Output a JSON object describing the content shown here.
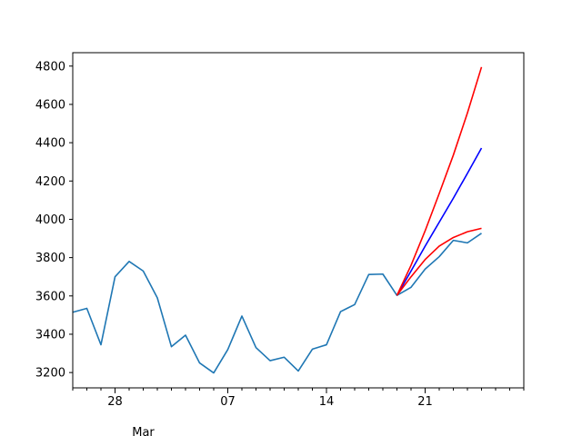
{
  "chart_data": {
    "type": "line",
    "title": "",
    "xlabel": "",
    "ylabel": "",
    "x_start": "2020-02-25",
    "x_end": "2020-03-28",
    "xlim": [
      "2020-02-25",
      "2020-03-28"
    ],
    "ylim": [
      3120,
      4870
    ],
    "y_ticks": [
      3200,
      3400,
      3600,
      3800,
      4000,
      4200,
      4400,
      4600,
      4800
    ],
    "x_ticks": [
      {
        "date": "2020-02-28",
        "label": "28",
        "major": true
      },
      {
        "date": "2020-03-07",
        "label": "07",
        "major": true
      },
      {
        "date": "2020-03-14",
        "label": "14",
        "major": true
      },
      {
        "date": "2020-03-21",
        "label": "21",
        "major": true
      }
    ],
    "x_minor_ticks": [
      "2020-02-25",
      "2020-02-26",
      "2020-02-27",
      "2020-02-29",
      "2020-03-01",
      "2020-03-02",
      "2020-03-03",
      "2020-03-04",
      "2020-03-05",
      "2020-03-06",
      "2020-03-08",
      "2020-03-09",
      "2020-03-10",
      "2020-03-11",
      "2020-03-12",
      "2020-03-13",
      "2020-03-15",
      "2020-03-16",
      "2020-03-17",
      "2020-03-18",
      "2020-03-19",
      "2020-03-20",
      "2020-03-22",
      "2020-03-23",
      "2020-03-24",
      "2020-03-25",
      "2020-03-26",
      "2020-03-27",
      "2020-03-28"
    ],
    "x_secondary_label": {
      "date": "2020-03-01",
      "label": "Mar"
    },
    "grid": false,
    "series": [
      {
        "color": "#1f77b4",
        "points": [
          [
            "2020-02-25",
            3515
          ],
          [
            "2020-02-26",
            3535
          ],
          [
            "2020-02-27",
            3345
          ],
          [
            "2020-02-28",
            3700
          ],
          [
            "2020-02-29",
            3780
          ],
          [
            "2020-03-01",
            3730
          ],
          [
            "2020-03-02",
            3590
          ],
          [
            "2020-03-03",
            3335
          ],
          [
            "2020-03-04",
            3395
          ],
          [
            "2020-03-05",
            3250
          ],
          [
            "2020-03-06",
            3198
          ],
          [
            "2020-03-07",
            3320
          ],
          [
            "2020-03-08",
            3495
          ],
          [
            "2020-03-09",
            3330
          ],
          [
            "2020-03-10",
            3262
          ],
          [
            "2020-03-11",
            3280
          ],
          [
            "2020-03-12",
            3208
          ],
          [
            "2020-03-13",
            3322
          ],
          [
            "2020-03-14",
            3345
          ],
          [
            "2020-03-15",
            3518
          ],
          [
            "2020-03-16",
            3555
          ],
          [
            "2020-03-17",
            3712
          ],
          [
            "2020-03-18",
            3714
          ],
          [
            "2020-03-19",
            3603
          ],
          [
            "2020-03-20",
            3645
          ],
          [
            "2020-03-21",
            3740
          ],
          [
            "2020-03-22",
            3805
          ],
          [
            "2020-03-23",
            3890
          ],
          [
            "2020-03-24",
            3877
          ],
          [
            "2020-03-25",
            3927
          ]
        ]
      },
      {
        "color": "#0000ff",
        "points": [
          [
            "2020-03-19",
            3603
          ],
          [
            "2020-03-20",
            3730
          ],
          [
            "2020-03-21",
            3860
          ],
          [
            "2020-03-22",
            3985
          ],
          [
            "2020-03-23",
            4110
          ],
          [
            "2020-03-24",
            4240
          ],
          [
            "2020-03-25",
            4372
          ]
        ]
      },
      {
        "color": "#ff0000",
        "points": [
          [
            "2020-03-19",
            3603
          ],
          [
            "2020-03-20",
            3760
          ],
          [
            "2020-03-21",
            3940
          ],
          [
            "2020-03-22",
            4135
          ],
          [
            "2020-03-23",
            4335
          ],
          [
            "2020-03-24",
            4555
          ],
          [
            "2020-03-25",
            4795
          ]
        ]
      },
      {
        "color": "#ff0000",
        "points": [
          [
            "2020-03-19",
            3603
          ],
          [
            "2020-03-20",
            3700
          ],
          [
            "2020-03-21",
            3790
          ],
          [
            "2020-03-22",
            3860
          ],
          [
            "2020-03-23",
            3905
          ],
          [
            "2020-03-24",
            3935
          ],
          [
            "2020-03-25",
            3953
          ]
        ]
      }
    ]
  }
}
